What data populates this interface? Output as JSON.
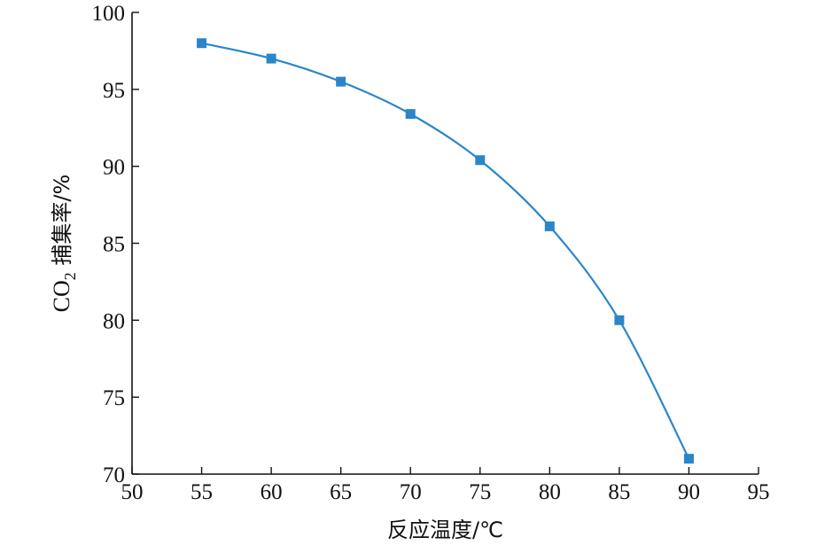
{
  "chart_data": {
    "type": "line",
    "xlabel": "反应温度/℃",
    "ylabel": {
      "prefix": "CO",
      "subscript": "2",
      "suffix": " 捕集率/%"
    },
    "xlim": [
      50,
      95
    ],
    "ylim": [
      70,
      100
    ],
    "xticks": [
      50,
      55,
      60,
      65,
      70,
      75,
      80,
      85,
      90,
      95
    ],
    "yticks": [
      70,
      75,
      80,
      85,
      90,
      95,
      100
    ],
    "grid": false,
    "series": [
      {
        "x": [
          55,
          60,
          65,
          70,
          75,
          80,
          85,
          90
        ],
        "y": [
          98.0,
          97.0,
          95.5,
          93.4,
          90.4,
          86.1,
          80.0,
          71.0
        ],
        "color": "#2a86c9",
        "marker": "square"
      }
    ]
  }
}
